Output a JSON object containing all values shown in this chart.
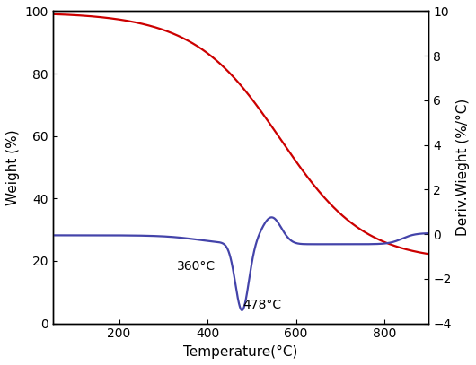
{
  "xlabel": "Temperature(°C)",
  "ylabel_left": "Weight (%)",
  "ylabel_right": "Deriv.Wieght (%/°C)",
  "xlim": [
    50,
    900
  ],
  "ylim_left": [
    0,
    100
  ],
  "ylim_right": [
    -4,
    10
  ],
  "ann1_text": "360°C",
  "ann2_text": "478°C",
  "tga_color": "#cc0000",
  "dtga_color": "#4444aa",
  "bg_color": "#ffffff",
  "xticks": [
    200,
    400,
    600,
    800
  ],
  "yticks_left": [
    0,
    20,
    40,
    60,
    80,
    100
  ],
  "yticks_right": [
    -4,
    -2,
    0,
    2,
    4,
    6,
    8,
    10
  ]
}
